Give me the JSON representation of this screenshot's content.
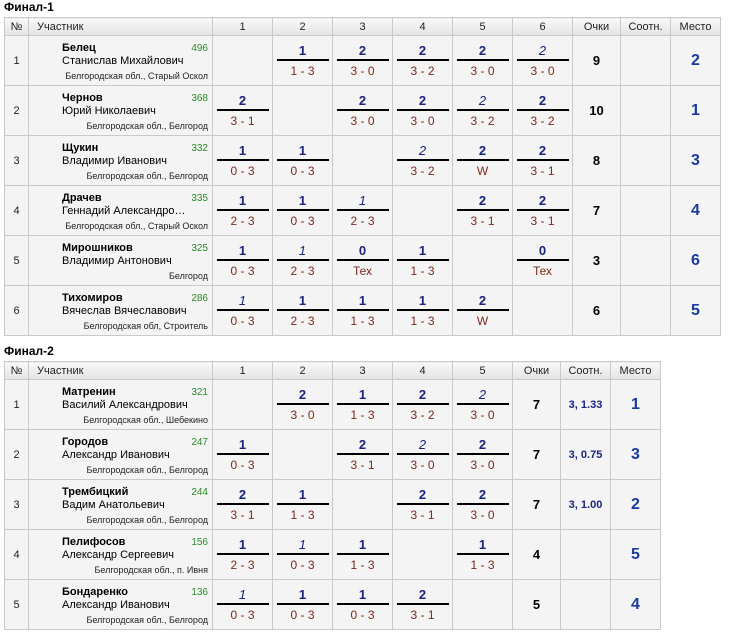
{
  "finals": [
    {
      "title": "Финал-1",
      "headers": {
        "num": "№",
        "participant": "Участник",
        "cols": [
          "1",
          "2",
          "3",
          "4",
          "5",
          "6"
        ],
        "points": "Очки",
        "ratio": "Соотн.",
        "place": "Место"
      },
      "rows": [
        {
          "num": "1",
          "surname": "Белец",
          "fullname": "Станислав Михайлович",
          "rating": "496",
          "region": "Белгородская обл., Старый Оскол",
          "games": [
            null,
            {
              "s": "1",
              "r": "1 - 3"
            },
            {
              "s": "2",
              "r": "3 - 0"
            },
            {
              "s": "2",
              "r": "3 - 2"
            },
            {
              "s": "2",
              "r": "3 - 0"
            },
            {
              "s": "2",
              "r": "3 - 0",
              "italic": true
            }
          ],
          "points": "9",
          "ratio": "",
          "place": "2"
        },
        {
          "num": "2",
          "surname": "Чернов",
          "fullname": "Юрий Николаевич",
          "rating": "368",
          "region": "Белгородская обл., Белгород",
          "games": [
            {
              "s": "2",
              "r": "3 - 1"
            },
            null,
            {
              "s": "2",
              "r": "3 - 0"
            },
            {
              "s": "2",
              "r": "3 - 0"
            },
            {
              "s": "2",
              "r": "3 - 2",
              "italic": true
            },
            {
              "s": "2",
              "r": "3 - 2"
            }
          ],
          "points": "10",
          "ratio": "",
          "place": "1"
        },
        {
          "num": "3",
          "surname": "Щукин",
          "fullname": "Владимир Иванович",
          "rating": "332",
          "region": "Белгородская обл., Белгород",
          "games": [
            {
              "s": "1",
              "r": "0 - 3"
            },
            {
              "s": "1",
              "r": "0 - 3"
            },
            null,
            {
              "s": "2",
              "r": "3 - 2",
              "italic": true
            },
            {
              "s": "2",
              "r": "W"
            },
            {
              "s": "2",
              "r": "3 - 1"
            }
          ],
          "points": "8",
          "ratio": "",
          "place": "3"
        },
        {
          "num": "4",
          "surname": "Драчев",
          "fullname": "Геннадий Александро…",
          "rating": "335",
          "region": "Белгородская обл., Старый Оскол",
          "games": [
            {
              "s": "1",
              "r": "2 - 3"
            },
            {
              "s": "1",
              "r": "0 - 3"
            },
            {
              "s": "1",
              "r": "2 - 3",
              "italic": true
            },
            null,
            {
              "s": "2",
              "r": "3 - 1"
            },
            {
              "s": "2",
              "r": "3 - 1"
            }
          ],
          "points": "7",
          "ratio": "",
          "place": "4"
        },
        {
          "num": "5",
          "surname": "Мирошников",
          "fullname": "Владимир Антонович",
          "rating": "325",
          "region": "Белгород",
          "games": [
            {
              "s": "1",
              "r": "0 - 3"
            },
            {
              "s": "1",
              "r": "2 - 3",
              "italic": true
            },
            {
              "s": "0",
              "r": "Тех"
            },
            {
              "s": "1",
              "r": "1 - 3"
            },
            null,
            {
              "s": "0",
              "r": "Тех"
            }
          ],
          "points": "3",
          "ratio": "",
          "place": "6"
        },
        {
          "num": "6",
          "surname": "Тихомиров",
          "fullname": "Вячеслав Вячеславович",
          "rating": "286",
          "region": "Белгородская обл, Строитель",
          "games": [
            {
              "s": "1",
              "r": "0 - 3",
              "italic": true
            },
            {
              "s": "1",
              "r": "2 - 3"
            },
            {
              "s": "1",
              "r": "1 - 3"
            },
            {
              "s": "1",
              "r": "1 - 3"
            },
            {
              "s": "2",
              "r": "W"
            },
            null
          ],
          "points": "6",
          "ratio": "",
          "place": "5"
        }
      ]
    },
    {
      "title": "Финал-2",
      "headers": {
        "num": "№",
        "participant": "Участник",
        "cols": [
          "1",
          "2",
          "3",
          "4",
          "5"
        ],
        "points": "Очки",
        "ratio": "Соотн.",
        "place": "Место"
      },
      "rows": [
        {
          "num": "1",
          "surname": "Матренин",
          "fullname": "Василий Александрович",
          "rating": "321",
          "region": "Белгородская обл., Шебекино",
          "games": [
            null,
            {
              "s": "2",
              "r": "3 - 0"
            },
            {
              "s": "1",
              "r": "1 - 3"
            },
            {
              "s": "2",
              "r": "3 - 2"
            },
            {
              "s": "2",
              "r": "3 - 0",
              "italic": true
            }
          ],
          "points": "7",
          "ratio": "3, 1.33",
          "place": "1"
        },
        {
          "num": "2",
          "surname": "Городов",
          "fullname": "Александр Иванович",
          "rating": "247",
          "region": "Белгородская обл., Белгород",
          "games": [
            {
              "s": "1",
              "r": "0 - 3"
            },
            null,
            {
              "s": "2",
              "r": "3 - 1"
            },
            {
              "s": "2",
              "r": "3 - 0",
              "italic": true
            },
            {
              "s": "2",
              "r": "3 - 0"
            }
          ],
          "points": "7",
          "ratio": "3, 0.75",
          "place": "3"
        },
        {
          "num": "3",
          "surname": "Трембицкий",
          "fullname": "Вадим Анатольевич",
          "rating": "244",
          "region": "Белгородская обл., Белгород",
          "games": [
            {
              "s": "2",
              "r": "3 - 1"
            },
            {
              "s": "1",
              "r": "1 - 3"
            },
            null,
            {
              "s": "2",
              "r": "3 - 1"
            },
            {
              "s": "2",
              "r": "3 - 0"
            }
          ],
          "points": "7",
          "ratio": "3, 1.00",
          "place": "2"
        },
        {
          "num": "4",
          "surname": "Пелифосов",
          "fullname": "Александр Сергеевич",
          "rating": "156",
          "region": "Белгородская обл., п. Ивня",
          "games": [
            {
              "s": "1",
              "r": "2 - 3"
            },
            {
              "s": "1",
              "r": "0 - 3",
              "italic": true
            },
            {
              "s": "1",
              "r": "1 - 3"
            },
            null,
            {
              "s": "1",
              "r": "1 - 3"
            }
          ],
          "points": "4",
          "ratio": "",
          "place": "5"
        },
        {
          "num": "5",
          "surname": "Бондаренко",
          "fullname": "Александр Иванович",
          "rating": "136",
          "region": "Белгородская обл., Белгород",
          "games": [
            {
              "s": "1",
              "r": "0 - 3",
              "italic": true
            },
            {
              "s": "1",
              "r": "0 - 3"
            },
            {
              "s": "1",
              "r": "0 - 3"
            },
            {
              "s": "2",
              "r": "3 - 1"
            },
            null
          ],
          "points": "5",
          "ratio": "",
          "place": "4"
        }
      ]
    }
  ]
}
